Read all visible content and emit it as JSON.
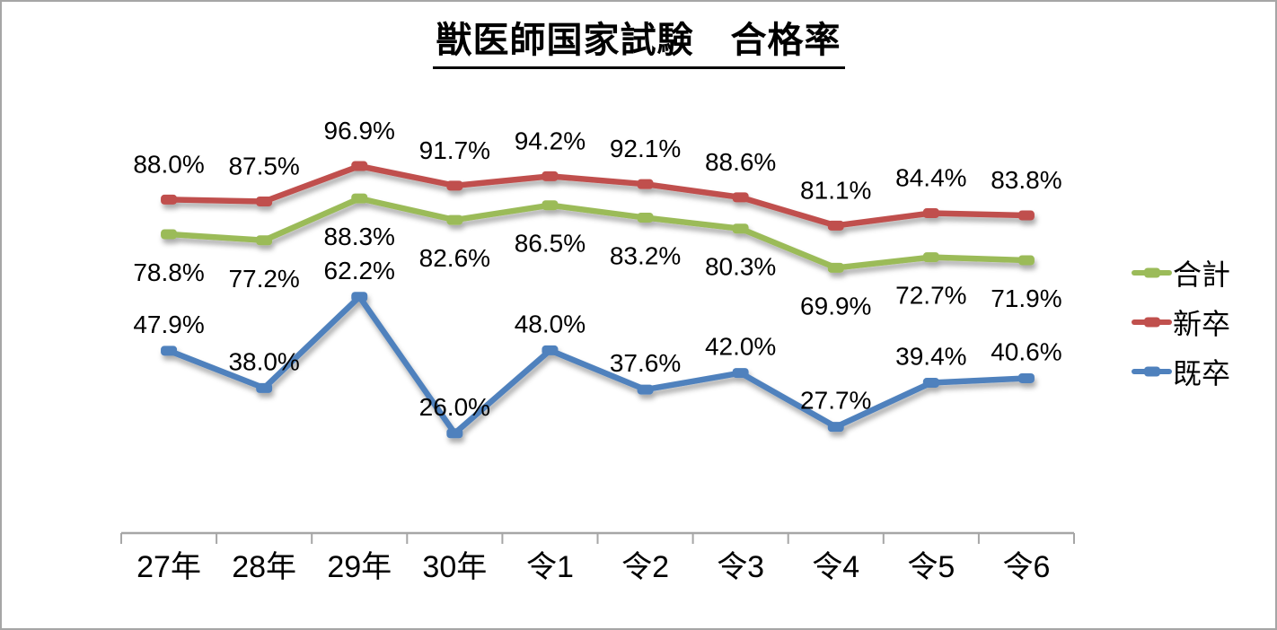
{
  "title": "獣医師国家試験　合格率",
  "chart_data": {
    "type": "line",
    "title": "獣医師国家試験　合格率",
    "categories": [
      "27年",
      "28年",
      "29年",
      "30年",
      "令1",
      "令2",
      "令3",
      "令4",
      "令5",
      "令6"
    ],
    "series": [
      {
        "name": "合計",
        "color": "#9BBB59",
        "label_position": "below",
        "values": [
          78.8,
          77.2,
          88.3,
          82.6,
          86.5,
          83.2,
          80.3,
          69.9,
          72.7,
          71.9
        ],
        "labels": [
          "78.8%",
          "77.2%",
          "88.3%",
          "82.6%",
          "86.5%",
          "83.2%",
          "80.3%",
          "69.9%",
          "72.7%",
          "71.9%"
        ]
      },
      {
        "name": "新卒",
        "color": "#C0504D",
        "label_position": "above",
        "values": [
          88.0,
          87.5,
          96.9,
          91.7,
          94.2,
          92.1,
          88.6,
          81.1,
          84.4,
          83.8
        ],
        "labels": [
          "88.0%",
          "87.5%",
          "96.9%",
          "91.7%",
          "94.2%",
          "92.1%",
          "88.6%",
          "81.1%",
          "84.4%",
          "83.8%"
        ]
      },
      {
        "name": "既卒",
        "color": "#4F81BD",
        "label_position": "above",
        "values": [
          47.9,
          38.0,
          62.2,
          26.0,
          48.0,
          37.6,
          42.0,
          27.7,
          39.4,
          40.6
        ],
        "labels": [
          "47.9%",
          "38.0%",
          "62.2%",
          "26.0%",
          "48.0%",
          "37.6%",
          "42.0%",
          "27.7%",
          "39.4%",
          "40.6%"
        ]
      }
    ],
    "legend_position": "right",
    "data_labels_shown": true,
    "y_axis": {
      "visible": false,
      "min": 0,
      "max": 100
    },
    "x_axis": {
      "visible": true,
      "color": "#A6A6A6"
    }
  }
}
